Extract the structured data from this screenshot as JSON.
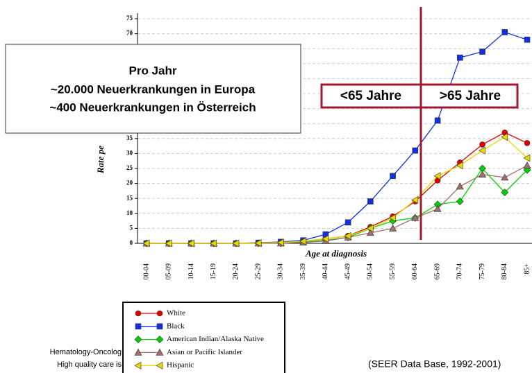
{
  "chart_data": {
    "type": "line",
    "y_label": "Rate pe",
    "x_label": "Age at diagnosis",
    "categories": [
      "00-04",
      "05-09",
      "10-14",
      "15-19",
      "20-24",
      "25-29",
      "30-34",
      "35-39",
      "40-44",
      "45-49",
      "50-54",
      "55-59",
      "60-64",
      "65-69",
      "70-74",
      "75-79",
      "80-84",
      "85+"
    ],
    "series": [
      {
        "name": "White",
        "color": "#e00000",
        "marker": "circle",
        "values": [
          0,
          0,
          0,
          0,
          0,
          0.2,
          0.3,
          0.7,
          1.5,
          2.5,
          5.5,
          9,
          14,
          21,
          27,
          33,
          37,
          33.5
        ]
      },
      {
        "name": "Black",
        "color": "#1030e0",
        "marker": "square",
        "values": [
          0,
          0,
          0,
          0,
          0,
          0.2,
          0.5,
          1,
          3,
          7,
          14,
          22.5,
          31,
          41,
          62,
          64,
          70.5,
          68
        ]
      },
      {
        "name": "American Indian/Alaska Native",
        "color": "#00d000",
        "marker": "diamond",
        "values": [
          0,
          0,
          0,
          0,
          0,
          0,
          0,
          0.5,
          1,
          2,
          5,
          7.5,
          8.5,
          13,
          14,
          25,
          17,
          24.5
        ]
      },
      {
        "name": "Asian or Pacific Islander",
        "color": "#a07070",
        "marker": "triangle-up",
        "values": [
          0,
          0,
          0,
          0,
          0,
          0,
          0,
          0.3,
          0.8,
          2,
          3.5,
          5,
          8.5,
          11.5,
          19,
          23,
          22,
          26
        ]
      },
      {
        "name": "Hispanic",
        "color": "#e8d800",
        "marker": "triangle-left",
        "values": [
          0,
          0,
          0,
          0,
          0,
          0.1,
          0.3,
          0.7,
          1.5,
          2.5,
          5,
          8.5,
          14.5,
          22.5,
          26,
          31,
          35.5,
          28.5
        ]
      }
    ],
    "ylim": [
      0,
      75
    ],
    "yticks": [
      0,
      5,
      10,
      15,
      20,
      25,
      30,
      35,
      40,
      45,
      50,
      55,
      60,
      65,
      70,
      75
    ],
    "grid": true
  },
  "overlay": {
    "title": "Pro Jahr",
    "lines": [
      "~20.000 Neuerkrankungen in Europa",
      "~400 Neuerkrankungen in Österreich"
    ]
  },
  "age_split": {
    "left": "<65 Jahre",
    "right": ">65 Jahre"
  },
  "footer": {
    "line1": "Hematology-Oncolog",
    "line2": "High quality care is",
    "source": "(SEER Data Base, 1992-2001)"
  }
}
